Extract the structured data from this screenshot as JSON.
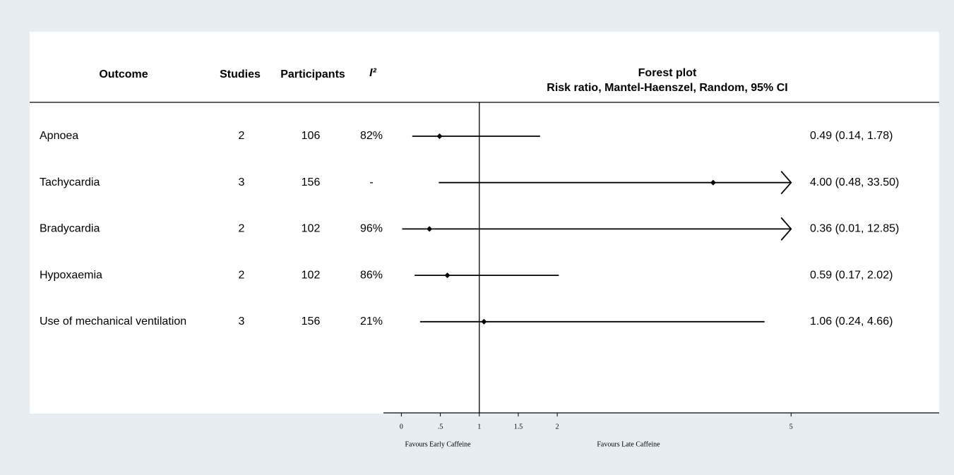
{
  "chart_data": {
    "type": "forest",
    "title": "Forest plot",
    "subtitle": "Risk ratio, Mantel-Haenszel, Random, 95% CI",
    "column_headers": [
      "Outcome",
      "Studies",
      "Participants",
      "I²"
    ],
    "categories": [
      "Apnoea",
      "Tachycardia",
      "Bradycardia",
      "Hypoxaemia",
      "Use of mechanical ventilation"
    ],
    "studies": [
      2,
      3,
      2,
      2,
      3
    ],
    "participants": [
      106,
      156,
      102,
      102,
      156
    ],
    "i2": [
      "82%",
      "-",
      "96%",
      "86%",
      "21%"
    ],
    "values": [
      0.49,
      4.0,
      0.36,
      0.59,
      1.06
    ],
    "lower": [
      0.14,
      0.48,
      0.01,
      0.17,
      0.24
    ],
    "upper": [
      1.78,
      33.5,
      12.85,
      2.02,
      4.66
    ],
    "value_labels": [
      "0.49 (0.14, 1.78)",
      "4.00 (0.48, 33.50)",
      "0.36 (0.01, 12.85)",
      "0.59 (0.17, 2.02)",
      "1.06 (0.24, 4.66)"
    ],
    "color": "#000000",
    "xlim": [
      -0.23,
      6.9
    ],
    "xticks": [
      0,
      {
        "value": 0.5,
        "label": ".5"
      },
      1,
      1.5,
      2,
      5
    ],
    "reference_line": 1,
    "xlabel_left": "Favours Early Caffeine",
    "xlabel_right": "Favours Late Caffeine"
  }
}
